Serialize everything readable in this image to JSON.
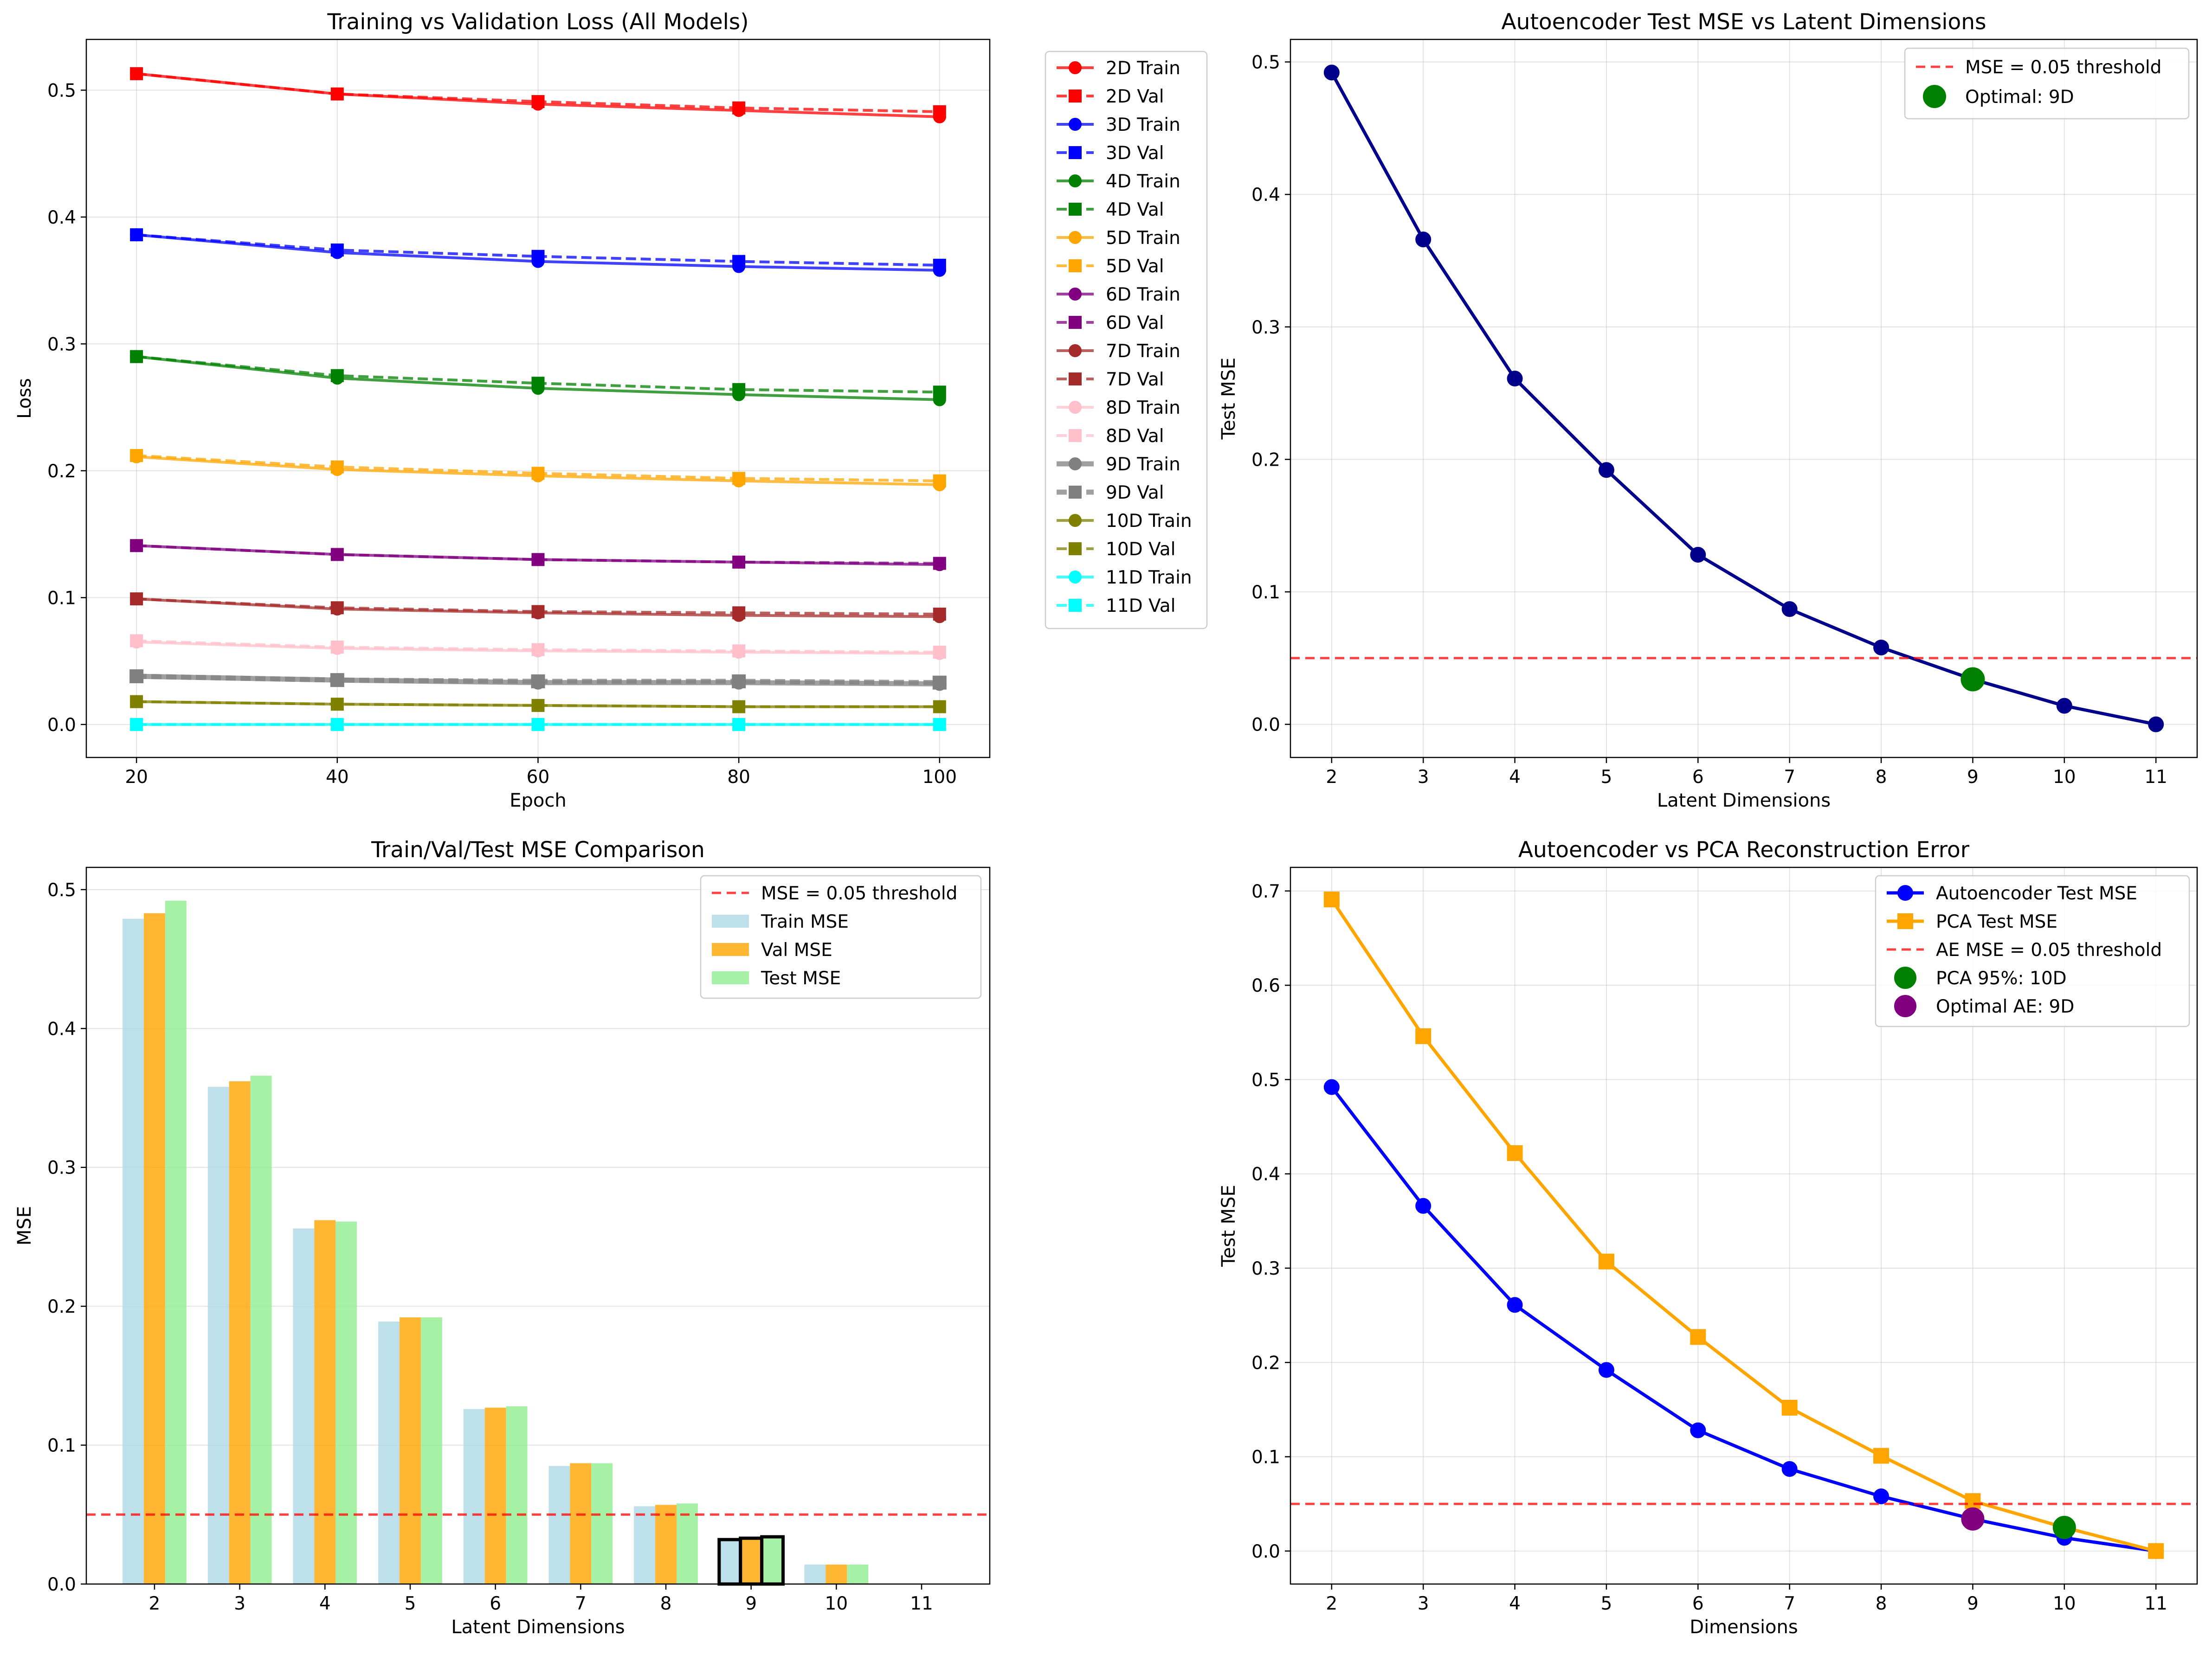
{
  "chart_data": [
    {
      "type": "line",
      "title": "Training vs Validation Loss (All Models)",
      "xlabel": "Epoch",
      "ylabel": "Loss",
      "x": [
        20,
        40,
        60,
        80,
        100
      ],
      "xlim": [
        15,
        105
      ],
      "ylim": [
        -0.026,
        0.54
      ],
      "xticks": [
        "20",
        "40",
        "60",
        "80",
        "100"
      ],
      "yticks": [
        "0.0",
        "0.1",
        "0.2",
        "0.3",
        "0.4",
        "0.5"
      ],
      "grid": true,
      "legend_placement": "outside-right",
      "series": [
        {
          "name": "2D Train",
          "color": "#ff0000",
          "style": "solid",
          "marker": "circle",
          "values": [
            0.513,
            0.497,
            0.489,
            0.484,
            0.479
          ]
        },
        {
          "name": "2D Val",
          "color": "#ff0000",
          "style": "dashed",
          "marker": "square",
          "values": [
            0.513,
            0.497,
            0.491,
            0.486,
            0.483
          ]
        },
        {
          "name": "3D Train",
          "color": "#0000ff",
          "style": "solid",
          "marker": "circle",
          "values": [
            0.386,
            0.372,
            0.365,
            0.361,
            0.358
          ]
        },
        {
          "name": "3D Val",
          "color": "#0000ff",
          "style": "dashed",
          "marker": "square",
          "values": [
            0.386,
            0.374,
            0.369,
            0.365,
            0.362
          ]
        },
        {
          "name": "4D Train",
          "color": "#008000",
          "style": "solid",
          "marker": "circle",
          "values": [
            0.29,
            0.273,
            0.265,
            0.26,
            0.256
          ]
        },
        {
          "name": "4D Val",
          "color": "#008000",
          "style": "dashed",
          "marker": "square",
          "values": [
            0.29,
            0.275,
            0.269,
            0.264,
            0.262
          ]
        },
        {
          "name": "5D Train",
          "color": "#ffa500",
          "style": "solid",
          "marker": "circle",
          "values": [
            0.211,
            0.201,
            0.196,
            0.192,
            0.189
          ]
        },
        {
          "name": "5D Val",
          "color": "#ffa500",
          "style": "dashed",
          "marker": "square",
          "values": [
            0.212,
            0.203,
            0.198,
            0.194,
            0.192
          ]
        },
        {
          "name": "6D Train",
          "color": "#800080",
          "style": "solid",
          "marker": "circle",
          "values": [
            0.141,
            0.134,
            0.13,
            0.128,
            0.126
          ]
        },
        {
          "name": "6D Val",
          "color": "#800080",
          "style": "dashed",
          "marker": "square",
          "values": [
            0.141,
            0.134,
            0.13,
            0.128,
            0.127
          ]
        },
        {
          "name": "7D Train",
          "color": "#a52a2a",
          "style": "solid",
          "marker": "circle",
          "values": [
            0.099,
            0.091,
            0.088,
            0.086,
            0.085
          ]
        },
        {
          "name": "7D Val",
          "color": "#a52a2a",
          "style": "dashed",
          "marker": "square",
          "values": [
            0.099,
            0.092,
            0.089,
            0.088,
            0.087
          ]
        },
        {
          "name": "8D Train",
          "color": "#ffc0cb",
          "style": "solid",
          "marker": "circle",
          "values": [
            0.065,
            0.06,
            0.058,
            0.057,
            0.056
          ]
        },
        {
          "name": "8D Val",
          "color": "#ffc0cb",
          "style": "dashed",
          "marker": "square",
          "values": [
            0.066,
            0.061,
            0.059,
            0.058,
            0.057
          ]
        },
        {
          "name": "9D Train",
          "color": "#808080",
          "style": "solid",
          "marker": "circle",
          "thick": true,
          "values": [
            0.038,
            0.035,
            0.033,
            0.033,
            0.032
          ]
        },
        {
          "name": "9D Val",
          "color": "#808080",
          "style": "dashed",
          "marker": "square",
          "thick": true,
          "values": [
            0.038,
            0.035,
            0.034,
            0.034,
            0.033
          ]
        },
        {
          "name": "10D Train",
          "color": "#808000",
          "style": "solid",
          "marker": "circle",
          "values": [
            0.018,
            0.016,
            0.015,
            0.014,
            0.014
          ]
        },
        {
          "name": "10D Val",
          "color": "#808000",
          "style": "dashed",
          "marker": "square",
          "values": [
            0.018,
            0.016,
            0.015,
            0.014,
            0.014
          ]
        },
        {
          "name": "11D Train",
          "color": "#00ffff",
          "style": "solid",
          "marker": "circle",
          "values": [
            0.0,
            0.0,
            0.0,
            0.0,
            0.0
          ]
        },
        {
          "name": "11D Val",
          "color": "#00ffff",
          "style": "dashed",
          "marker": "square",
          "values": [
            0.0,
            0.0,
            0.0,
            0.0,
            0.0
          ]
        }
      ]
    },
    {
      "type": "line",
      "title": "Autoencoder Test MSE vs Latent Dimensions",
      "xlabel": "Latent Dimensions",
      "ylabel": "Test MSE",
      "x": [
        2,
        3,
        4,
        5,
        6,
        7,
        8,
        9,
        10,
        11
      ],
      "xlim": [
        1.55,
        11.45
      ],
      "ylim": [
        -0.025,
        0.517
      ],
      "xticks": [
        "2",
        "3",
        "4",
        "5",
        "6",
        "7",
        "8",
        "9",
        "10",
        "11"
      ],
      "yticks": [
        "0.0",
        "0.1",
        "0.2",
        "0.3",
        "0.4",
        "0.5"
      ],
      "grid": true,
      "legend_placement": "top-right",
      "series": [
        {
          "name": "",
          "color": "#00008b",
          "style": "solid",
          "marker": "circle",
          "values": [
            0.492,
            0.366,
            0.261,
            0.192,
            0.128,
            0.087,
            0.058,
            0.034,
            0.014,
            0.0
          ]
        }
      ],
      "threshold": {
        "value": 0.05,
        "label": "MSE = 0.05 threshold",
        "color": "#ff0000"
      },
      "highlight_points": [
        {
          "x": 9,
          "y": 0.034,
          "label": "Optimal: 9D",
          "color": "#008000"
        }
      ]
    },
    {
      "type": "bar",
      "title": "Train/Val/Test MSE Comparison",
      "xlabel": "Latent Dimensions",
      "ylabel": "MSE",
      "categories": [
        "2",
        "3",
        "4",
        "5",
        "6",
        "7",
        "8",
        "9",
        "10",
        "11"
      ],
      "ylim": [
        0,
        0.516
      ],
      "yticks": [
        "0.0",
        "0.1",
        "0.2",
        "0.3",
        "0.4",
        "0.5"
      ],
      "grid": true,
      "legend_placement": "top-right",
      "series": [
        {
          "name": "Train MSE",
          "color": "#add8e6",
          "values": [
            0.479,
            0.358,
            0.256,
            0.189,
            0.126,
            0.085,
            0.056,
            0.032,
            0.014,
            0.0
          ]
        },
        {
          "name": "Val MSE",
          "color": "#ffa500",
          "values": [
            0.483,
            0.362,
            0.262,
            0.192,
            0.127,
            0.087,
            0.057,
            0.033,
            0.014,
            0.0
          ]
        },
        {
          "name": "Test MSE",
          "color": "#90ee90",
          "values": [
            0.492,
            0.366,
            0.261,
            0.192,
            0.128,
            0.087,
            0.058,
            0.034,
            0.014,
            0.0
          ]
        }
      ],
      "threshold": {
        "value": 0.05,
        "label": "MSE = 0.05 threshold",
        "color": "#ff0000"
      },
      "highlight_category": "9"
    },
    {
      "type": "line",
      "title": "Autoencoder vs PCA Reconstruction Error",
      "xlabel": "Dimensions",
      "ylabel": "Test MSE",
      "x": [
        2,
        3,
        4,
        5,
        6,
        7,
        8,
        9,
        10,
        11
      ],
      "xlim": [
        1.55,
        11.45
      ],
      "ylim": [
        -0.035,
        0.725
      ],
      "xticks": [
        "2",
        "3",
        "4",
        "5",
        "6",
        "7",
        "8",
        "9",
        "10",
        "11"
      ],
      "yticks": [
        "0.0",
        "0.1",
        "0.2",
        "0.3",
        "0.4",
        "0.5",
        "0.6",
        "0.7"
      ],
      "grid": true,
      "legend_placement": "top-right",
      "series": [
        {
          "name": "Autoencoder Test MSE",
          "color": "#0000ff",
          "style": "solid",
          "marker": "circle",
          "values": [
            0.492,
            0.366,
            0.261,
            0.192,
            0.128,
            0.087,
            0.058,
            0.034,
            0.014,
            0.0
          ]
        },
        {
          "name": "PCA Test MSE",
          "color": "#ffa500",
          "style": "solid",
          "marker": "square",
          "values": [
            0.691,
            0.546,
            0.422,
            0.307,
            0.227,
            0.152,
            0.101,
            0.053,
            0.025,
            0.0
          ]
        }
      ],
      "threshold": {
        "value": 0.05,
        "label": "AE MSE = 0.05 threshold",
        "color": "#ff0000"
      },
      "highlight_points": [
        {
          "x": 10,
          "y": 0.025,
          "label": "PCA 95%: 10D",
          "color": "#008000"
        },
        {
          "x": 9,
          "y": 0.034,
          "label": "Optimal AE: 9D",
          "color": "#800080"
        }
      ]
    }
  ]
}
